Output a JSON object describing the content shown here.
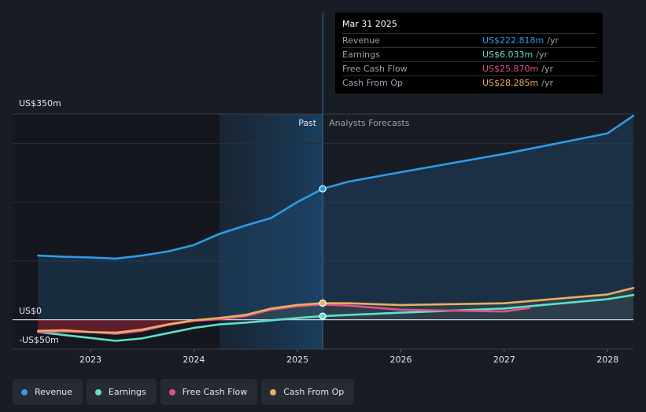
{
  "tooltip": {
    "date": "Mar 31 2025",
    "rows": [
      {
        "label": "Revenue",
        "value": "US$222.818m",
        "unit": "/yr",
        "color": "#2f9be6"
      },
      {
        "label": "Earnings",
        "value": "US$6.033m",
        "unit": "/yr",
        "color": "#5fe0c8"
      },
      {
        "label": "Free Cash Flow",
        "value": "US$25.870m",
        "unit": "/yr",
        "color": "#e0508a"
      },
      {
        "label": "Cash From Op",
        "value": "US$28.285m",
        "unit": "/yr",
        "color": "#eaae62"
      }
    ]
  },
  "legend": [
    {
      "label": "Revenue",
      "color": "#2f9be6"
    },
    {
      "label": "Earnings",
      "color": "#5fe0c8"
    },
    {
      "label": "Free Cash Flow",
      "color": "#e0508a"
    },
    {
      "label": "Cash From Op",
      "color": "#eaae62"
    }
  ],
  "chart_data": {
    "type": "line",
    "yaxis_labels": [
      "US$350m",
      "US$0",
      "-US$50m"
    ],
    "ylim": [
      -50,
      350
    ],
    "xlim": [
      "2022-04-01",
      "2028-04-01"
    ],
    "x_ticks": [
      "2023",
      "2024",
      "2025",
      "2026",
      "2027",
      "2028"
    ],
    "x_tick_dates": [
      "2023-01-01",
      "2024-01-01",
      "2025-01-01",
      "2026-01-01",
      "2027-01-01",
      "2028-01-01"
    ],
    "past_label": "Past",
    "forecast_label": "Analysts Forecasts",
    "divider_date": "2025-03-31",
    "highlight_start": "2024-03-31",
    "grid": true,
    "series": [
      {
        "name": "Revenue",
        "color": "#2f9be6",
        "area": true,
        "points": [
          [
            "2022-06-30",
            109
          ],
          [
            "2022-09-30",
            107
          ],
          [
            "2022-12-31",
            106
          ],
          [
            "2023-03-31",
            104
          ],
          [
            "2023-06-30",
            109
          ],
          [
            "2023-09-30",
            116
          ],
          [
            "2023-12-31",
            127
          ],
          [
            "2024-03-31",
            146
          ],
          [
            "2024-06-30",
            160
          ],
          [
            "2024-09-30",
            173
          ],
          [
            "2024-12-31",
            200
          ],
          [
            "2025-03-31",
            222.8
          ],
          [
            "2025-06-30",
            235
          ],
          [
            "2025-12-31",
            251
          ],
          [
            "2026-12-31",
            282
          ],
          [
            "2027-12-31",
            317
          ],
          [
            "2028-04-01",
            347
          ]
        ]
      },
      {
        "name": "Cash From Op",
        "color": "#eaae62",
        "area": false,
        "points": [
          [
            "2022-06-30",
            -19
          ],
          [
            "2022-09-30",
            -18
          ],
          [
            "2022-12-31",
            -21
          ],
          [
            "2023-03-31",
            -22
          ],
          [
            "2023-06-30",
            -17
          ],
          [
            "2023-09-30",
            -8
          ],
          [
            "2023-12-31",
            -1
          ],
          [
            "2024-03-31",
            3
          ],
          [
            "2024-06-30",
            8
          ],
          [
            "2024-09-30",
            19
          ],
          [
            "2024-12-31",
            25
          ],
          [
            "2025-03-31",
            28.3
          ],
          [
            "2025-06-30",
            28
          ],
          [
            "2025-12-31",
            25
          ],
          [
            "2026-12-31",
            28
          ],
          [
            "2027-12-31",
            43
          ],
          [
            "2028-04-01",
            54
          ]
        ]
      },
      {
        "name": "Free Cash Flow",
        "color": "#e0508a",
        "area": false,
        "points": [
          [
            "2022-06-30",
            -21
          ],
          [
            "2022-09-30",
            -20
          ],
          [
            "2022-12-31",
            -21
          ],
          [
            "2023-03-31",
            -24
          ],
          [
            "2023-06-30",
            -19
          ],
          [
            "2023-09-30",
            -9
          ],
          [
            "2023-12-31",
            -2
          ],
          [
            "2024-03-31",
            1
          ],
          [
            "2024-06-30",
            6
          ],
          [
            "2024-09-30",
            17
          ],
          [
            "2024-12-31",
            23
          ],
          [
            "2025-03-31",
            25.9
          ],
          [
            "2025-06-30",
            24
          ],
          [
            "2025-12-31",
            17
          ],
          [
            "2026-12-31",
            14
          ],
          [
            "2027-03-31",
            20
          ]
        ]
      },
      {
        "name": "Earnings",
        "color": "#5fe0c8",
        "area": false,
        "points": [
          [
            "2022-06-30",
            -21
          ],
          [
            "2022-09-30",
            -26
          ],
          [
            "2022-12-31",
            -31
          ],
          [
            "2023-03-31",
            -36
          ],
          [
            "2023-06-30",
            -32
          ],
          [
            "2023-09-30",
            -23
          ],
          [
            "2023-12-31",
            -14
          ],
          [
            "2024-03-31",
            -8
          ],
          [
            "2024-06-30",
            -5
          ],
          [
            "2024-09-30",
            -1
          ],
          [
            "2024-12-31",
            3
          ],
          [
            "2025-03-31",
            6.0
          ],
          [
            "2025-06-30",
            8
          ],
          [
            "2025-12-31",
            12
          ],
          [
            "2026-12-31",
            19
          ],
          [
            "2027-12-31",
            35
          ],
          [
            "2028-04-01",
            42
          ]
        ]
      }
    ],
    "markers": [
      {
        "series": "Revenue",
        "date": "2025-03-31",
        "value": 222.8
      },
      {
        "series": "Cash From Op",
        "date": "2025-03-31",
        "value": 28.3
      },
      {
        "series": "Earnings",
        "date": "2025-03-31",
        "value": 6.0
      }
    ]
  }
}
